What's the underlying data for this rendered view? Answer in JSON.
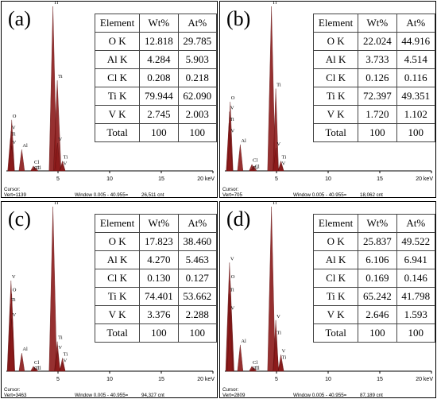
{
  "chart_data": [
    {
      "type": "table",
      "label": "(a)",
      "header": [
        "Element",
        "Wt%",
        "At%"
      ],
      "rows": [
        [
          "O K",
          "12.818",
          "29.785"
        ],
        [
          "Al K",
          "4.284",
          "5.903"
        ],
        [
          "Cl K",
          "0.208",
          "0.218"
        ],
        [
          "Ti K",
          "79.944",
          "62.090"
        ],
        [
          "V K",
          "2.745",
          "2.003"
        ],
        [
          "Total",
          "100",
          "100"
        ]
      ],
      "xlim": [
        0,
        20
      ],
      "x_ticks": [
        "5",
        "10",
        "15",
        "20 keV"
      ],
      "peaks": [
        {
          "x": 0.52,
          "rel": 0.31,
          "labels": [
            "O"
          ]
        },
        {
          "x": 0.45,
          "rel": 0.24,
          "labels": [
            "V"
          ]
        },
        {
          "x": 0.4,
          "rel": 0.2,
          "labels": [
            "Ti"
          ]
        },
        {
          "x": 0.5,
          "rel": 0.15,
          "labels": [
            "V"
          ]
        },
        {
          "x": 1.49,
          "rel": 0.13,
          "labels": [
            "Al"
          ]
        },
        {
          "x": 2.62,
          "rel": 0.03,
          "labels": [
            "Cl"
          ]
        },
        {
          "x": 2.81,
          "rel": 0.02,
          "labels": [
            "Cl"
          ]
        },
        {
          "x": 2.62,
          "rel": 0.01,
          "labels": [
            "Cl"
          ]
        },
        {
          "x": 4.51,
          "rel": 1.0,
          "labels": [
            "Ti"
          ]
        },
        {
          "x": 4.93,
          "rel": 0.55,
          "labels": [
            "Ti"
          ]
        },
        {
          "x": 4.95,
          "rel": 0.17,
          "labels": [
            "V"
          ]
        },
        {
          "x": 5.43,
          "rel": 0.06,
          "labels": [
            "Ti"
          ]
        },
        {
          "x": 5.43,
          "rel": 0.04,
          "labels": [
            "V"
          ]
        }
      ],
      "footer": {
        "cursor": "Cursor:",
        "vert": "Vert=1139",
        "window": "Window 0.005 - 40.955=",
        "counts": "26,511 cnt"
      }
    },
    {
      "type": "table",
      "label": "(b)",
      "header": [
        "Element",
        "Wt%",
        "At%"
      ],
      "rows": [
        [
          "O K",
          "22.024",
          "44.916"
        ],
        [
          "Al K",
          "3.733",
          "4.514"
        ],
        [
          "Cl K",
          "0.126",
          "0.116"
        ],
        [
          "Ti K",
          "72.397",
          "49.351"
        ],
        [
          "V K",
          "1.720",
          "1.102"
        ],
        [
          "Total",
          "100",
          "100"
        ]
      ],
      "xlim": [
        0,
        20
      ],
      "x_ticks": [
        "5",
        "10",
        "15",
        "20 keV"
      ],
      "peaks": [
        {
          "x": 0.52,
          "rel": 0.42,
          "labels": [
            "O"
          ]
        },
        {
          "x": 0.45,
          "rel": 0.36,
          "labels": [
            "V"
          ]
        },
        {
          "x": 0.4,
          "rel": 0.29,
          "labels": [
            "Ti"
          ]
        },
        {
          "x": 0.5,
          "rel": 0.22,
          "labels": [
            "V"
          ]
        },
        {
          "x": 1.49,
          "rel": 0.16,
          "labels": [
            "Al"
          ]
        },
        {
          "x": 2.62,
          "rel": 0.04,
          "labels": [
            "Cl"
          ]
        },
        {
          "x": 2.81,
          "rel": 0.03,
          "labels": [
            "Cl"
          ]
        },
        {
          "x": 2.62,
          "rel": 0.01,
          "labels": [
            "Cl"
          ]
        },
        {
          "x": 4.51,
          "rel": 1.0,
          "labels": [
            "Ti"
          ]
        },
        {
          "x": 4.93,
          "rel": 0.5,
          "labels": [
            "Ti"
          ]
        },
        {
          "x": 4.95,
          "rel": 0.14,
          "labels": [
            "V"
          ]
        },
        {
          "x": 5.43,
          "rel": 0.06,
          "labels": [
            "Ti"
          ]
        },
        {
          "x": 5.43,
          "rel": 0.04,
          "labels": [
            "V"
          ]
        }
      ],
      "footer": {
        "cursor": "Cursor:",
        "vert": "Vert=705",
        "window": "Window 0.005 - 40.955=",
        "counts": "18,062 cnt"
      }
    },
    {
      "type": "table",
      "label": "(c)",
      "header": [
        "Element",
        "Wt%",
        "At%"
      ],
      "rows": [
        [
          "O K",
          "17.823",
          "38.460"
        ],
        [
          "Al K",
          "4.270",
          "5.463"
        ],
        [
          "Cl K",
          "0.130",
          "0.127"
        ],
        [
          "Ti K",
          "74.401",
          "53.662"
        ],
        [
          "V K",
          "3.376",
          "2.288"
        ],
        [
          "Total",
          "100",
          "100"
        ]
      ],
      "xlim": [
        0,
        20
      ],
      "x_ticks": [
        "5",
        "10",
        "15",
        "20 keV"
      ],
      "peaks": [
        {
          "x": 0.52,
          "rel": 0.47,
          "labels": [
            "O"
          ]
        },
        {
          "x": 0.45,
          "rel": 0.55,
          "labels": [
            "V"
          ]
        },
        {
          "x": 0.4,
          "rel": 0.41,
          "labels": [
            "Ti"
          ]
        },
        {
          "x": 0.5,
          "rel": 0.32,
          "labels": [
            "V"
          ]
        },
        {
          "x": 1.49,
          "rel": 0.11,
          "labels": [
            "Al"
          ]
        },
        {
          "x": 2.62,
          "rel": 0.03,
          "labels": [
            "Cl"
          ]
        },
        {
          "x": 2.81,
          "rel": 0.02,
          "labels": [
            "Cl"
          ]
        },
        {
          "x": 2.62,
          "rel": 0.01,
          "labels": [
            "Cl"
          ]
        },
        {
          "x": 4.51,
          "rel": 1.0,
          "labels": [
            "Ti"
          ]
        },
        {
          "x": 4.93,
          "rel": 0.18,
          "labels": [
            "Ti"
          ]
        },
        {
          "x": 4.95,
          "rel": 0.12,
          "labels": [
            "V"
          ]
        },
        {
          "x": 5.43,
          "rel": 0.08,
          "labels": [
            "Ti"
          ]
        },
        {
          "x": 5.43,
          "rel": 0.05,
          "labels": [
            "V"
          ]
        }
      ],
      "footer": {
        "cursor": "Cursor:",
        "vert": "Vert=3463",
        "window": "Window 0.005 - 40.955=",
        "counts": "94,327 cnt"
      }
    },
    {
      "type": "table",
      "label": "(d)",
      "header": [
        "Element",
        "Wt%",
        "At%"
      ],
      "rows": [
        [
          "O K",
          "25.837",
          "49.522"
        ],
        [
          "Al K",
          "6.106",
          "6.941"
        ],
        [
          "Cl K",
          "0.169",
          "0.146"
        ],
        [
          "Ti K",
          "65.242",
          "41.798"
        ],
        [
          "V K",
          "2.646",
          "1.593"
        ],
        [
          "Total",
          "100",
          "100"
        ]
      ],
      "xlim": [
        0,
        20
      ],
      "x_ticks": [
        "5",
        "10",
        "15",
        "20 keV"
      ],
      "peaks": [
        {
          "x": 0.52,
          "rel": 0.55,
          "labels": [
            "O"
          ]
        },
        {
          "x": 0.45,
          "rel": 0.66,
          "labels": [
            "V"
          ]
        },
        {
          "x": 0.4,
          "rel": 0.47,
          "labels": [
            "Ti"
          ]
        },
        {
          "x": 0.5,
          "rel": 0.36,
          "labels": [
            "V"
          ]
        },
        {
          "x": 1.49,
          "rel": 0.16,
          "labels": [
            "Al"
          ]
        },
        {
          "x": 2.62,
          "rel": 0.03,
          "labels": [
            "Cl"
          ]
        },
        {
          "x": 2.81,
          "rel": 0.02,
          "labels": [
            "Cl"
          ]
        },
        {
          "x": 2.62,
          "rel": 0.01,
          "labels": [
            "Cl"
          ]
        },
        {
          "x": 4.51,
          "rel": 1.0,
          "labels": [
            "Ti"
          ]
        },
        {
          "x": 4.93,
          "rel": 0.31,
          "labels": [
            "V"
          ]
        },
        {
          "x": 4.95,
          "rel": 0.21,
          "labels": [
            "Ti"
          ]
        },
        {
          "x": 5.43,
          "rel": 0.1,
          "labels": [
            "V"
          ]
        },
        {
          "x": 5.43,
          "rel": 0.06,
          "labels": [
            "Ti"
          ]
        }
      ],
      "footer": {
        "cursor": "Cursor:",
        "vert": "Vert=2809",
        "window": "Window 0.005 - 40.955=",
        "counts": "87,189 cnt"
      }
    }
  ],
  "colors": {
    "peak_fill": "#8b1a1a",
    "peak_edge": "#5a0c0c",
    "axis": "#000000",
    "label": "#000000"
  }
}
